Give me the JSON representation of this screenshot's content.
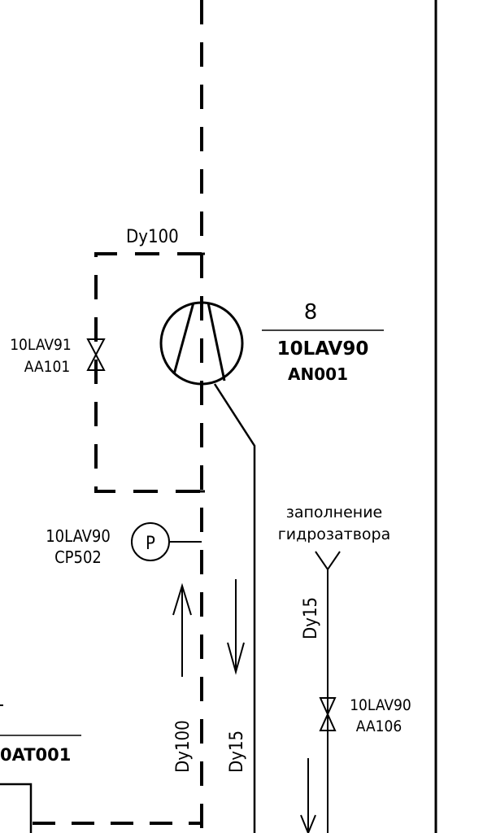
{
  "labels": {
    "dy100_top": "Dy100",
    "pump_number": "8",
    "pump_code1": "10LAV90",
    "pump_code2": "AN001",
    "valve91_code1": "10LAV91",
    "valve91_code2": "AA101",
    "sensor_letter": "P",
    "sensor_code1": "10LAV90",
    "sensor_code2": "CP502",
    "fill_note1": "заполнение",
    "fill_note2": "гидрозатвора",
    "dy15_right": "Dy15",
    "valve106_code1": "10LAV90",
    "valve106_code2": "AA106",
    "dy100_bottom": "Dy100",
    "dy15_bottom": "Dy15",
    "partial_tag": "0AT001"
  }
}
